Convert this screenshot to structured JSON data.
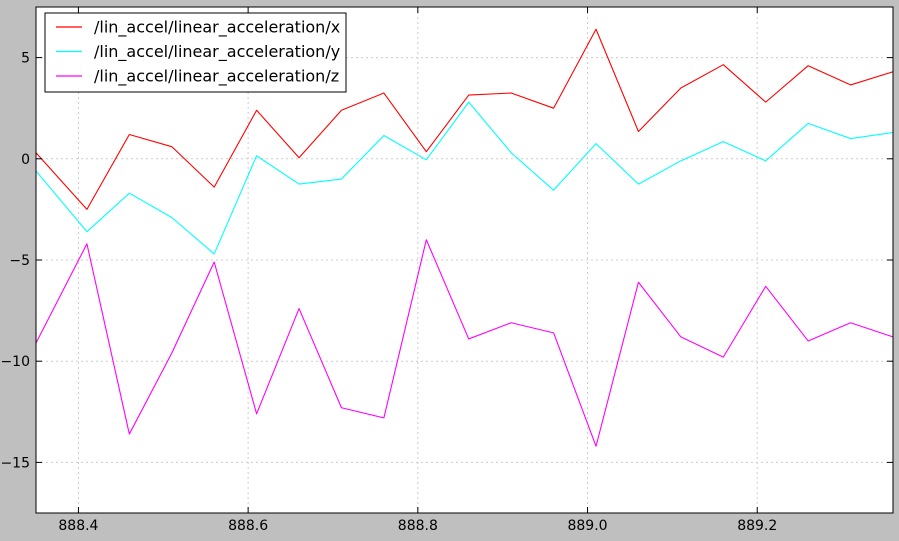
{
  "chart_data": {
    "type": "line",
    "title": "",
    "xlabel": "",
    "ylabel": "",
    "xlim": [
      888.35,
      889.36
    ],
    "ylim": [
      -17.5,
      7.5
    ],
    "grid": true,
    "legend_position": "top-left",
    "x_ticks": [
      888.4,
      888.6,
      888.8,
      889.0,
      889.2
    ],
    "x_tick_labels": [
      "888.4",
      "888.6",
      "888.8",
      "889.0",
      "889.2"
    ],
    "y_ticks": [
      5,
      0,
      -5,
      -10,
      -15
    ],
    "y_tick_labels": [
      "5",
      "0",
      "−5",
      "−10",
      "−15"
    ],
    "x": [
      888.35,
      888.41,
      888.46,
      888.51,
      888.56,
      888.61,
      888.66,
      888.71,
      888.76,
      888.81,
      888.86,
      888.91,
      888.96,
      889.01,
      889.06,
      889.11,
      889.16,
      889.21,
      889.26,
      889.31,
      889.36
    ],
    "series": [
      {
        "name": "/lin_accel/linear_acceleration/x",
        "color": "#ff0000",
        "values": [
          0.3,
          -2.5,
          1.2,
          0.6,
          -1.4,
          2.4,
          0.05,
          2.4,
          3.25,
          0.35,
          3.15,
          3.25,
          2.5,
          6.4,
          1.35,
          3.5,
          4.65,
          2.8,
          4.6,
          3.65,
          4.3
        ]
      },
      {
        "name": "/lin_accel/linear_acceleration/y",
        "color": "#00ffff",
        "values": [
          -0.6,
          -3.6,
          -1.7,
          -2.9,
          -4.7,
          0.15,
          -1.25,
          -1.0,
          1.15,
          -0.05,
          2.8,
          0.3,
          -1.55,
          0.75,
          -1.25,
          -0.1,
          0.85,
          -0.1,
          1.75,
          1.0,
          1.3
        ]
      },
      {
        "name": "/lin_accel/linear_acceleration/z",
        "color": "#ff00ff",
        "values": [
          -9.1,
          -4.2,
          -13.6,
          -9.6,
          -5.1,
          -12.6,
          -7.4,
          -12.3,
          -12.8,
          -4.0,
          -8.9,
          -8.1,
          -8.6,
          -14.2,
          -6.1,
          -8.8,
          -9.8,
          -6.3,
          -9.0,
          -8.1,
          -8.8
        ]
      }
    ]
  },
  "colors": {
    "figure_background": "#bfbfbf",
    "axes_background": "#ffffff",
    "grid": "#cccccc"
  }
}
